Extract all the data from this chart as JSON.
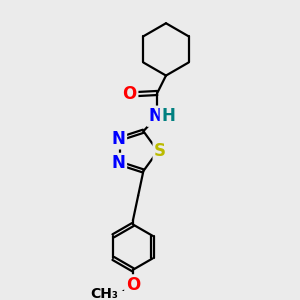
{
  "bg_color": "#ebebeb",
  "bond_color": "#000000",
  "bond_width": 1.6,
  "atom_colors": {
    "O": "#ff0000",
    "N": "#0000ff",
    "S": "#bbbb00",
    "H": "#008080",
    "C": "#000000"
  },
  "font_size_atom": 12,
  "font_size_small": 10,
  "xlim": [
    2.5,
    8.0
  ],
  "ylim": [
    1.5,
    11.5
  ]
}
